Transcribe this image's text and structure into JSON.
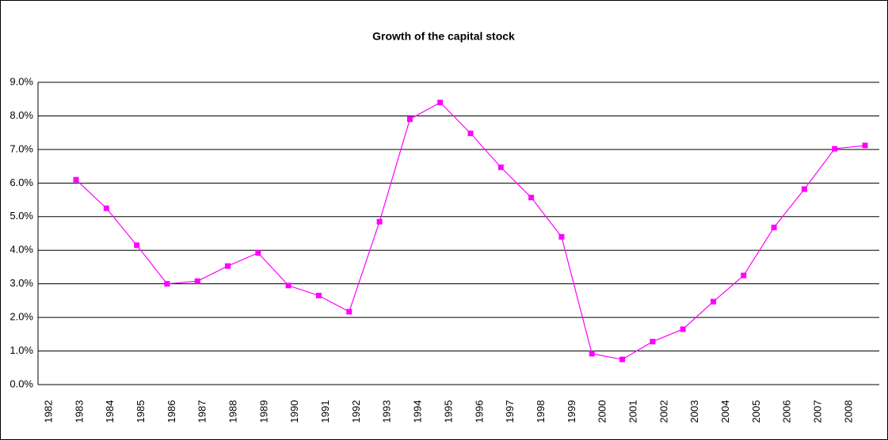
{
  "chart_data": {
    "type": "line",
    "title": "Growth of the capital stock",
    "categories": [
      "1982",
      "1983",
      "1984",
      "1985",
      "1986",
      "1987",
      "1988",
      "1989",
      "1990",
      "1991",
      "1992",
      "1993",
      "1994",
      "1995",
      "1996",
      "1997",
      "1998",
      "1999",
      "2000",
      "2001",
      "2002",
      "2003",
      "2004",
      "2005",
      "2006",
      "2007",
      "2008"
    ],
    "series": [
      {
        "name": "Growth of the capital stock",
        "color": "#ff00ff",
        "values": [
          6.1,
          5.25,
          4.15,
          3.0,
          3.08,
          3.53,
          3.92,
          2.95,
          2.65,
          2.17,
          4.85,
          7.9,
          8.4,
          7.48,
          6.47,
          5.57,
          4.4,
          0.92,
          0.75,
          1.28,
          1.65,
          2.47,
          3.25,
          4.68,
          5.82,
          7.02,
          7.12
        ]
      }
    ],
    "ylim": [
      0,
      9
    ],
    "yticks": [
      {
        "value": 0,
        "label": "0.0%"
      },
      {
        "value": 1,
        "label": "1.0%"
      },
      {
        "value": 2,
        "label": "2.0%"
      },
      {
        "value": 3,
        "label": "3.0%"
      },
      {
        "value": 4,
        "label": "4.0%"
      },
      {
        "value": 5,
        "label": "5.0%"
      },
      {
        "value": 6,
        "label": "6.0%"
      },
      {
        "value": 7,
        "label": "7.0%"
      },
      {
        "value": 8,
        "label": "8.0%"
      },
      {
        "value": 9,
        "label": "9.0%"
      }
    ],
    "grid": true
  }
}
